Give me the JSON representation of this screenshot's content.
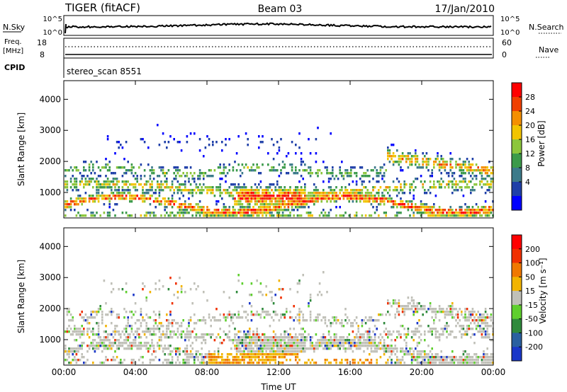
{
  "header": {
    "title": "TIGER (fitACF)",
    "beam": "Beam 03",
    "date": "17/Jan/2010"
  },
  "strip": {
    "nsky_label": "N.Sky",
    "nsearch_label": "N.Search",
    "nsky_ticks": [
      "10^5",
      "10^0"
    ],
    "freq_label_top": "Freq.",
    "freq_label_bottom": "[MHz]",
    "freq_ticks": [
      "18",
      "8"
    ],
    "nave_label": "Nave",
    "nave_ticks": [
      "60",
      "0"
    ],
    "cpid_label": "CPID",
    "cpid_value": "stereo_scan 8551"
  },
  "chart_data": [
    {
      "type": "heatmap",
      "name_hint": "power",
      "ylabel": "Slant Range [km]",
      "xlabel": "",
      "x_ticks": [
        "00:00",
        "04:00",
        "08:00",
        "12:00",
        "16:00",
        "20:00",
        "00:00"
      ],
      "x_range_hours": [
        0,
        24
      ],
      "y_ticks": [
        1000,
        2000,
        3000,
        4000
      ],
      "ylim": [
        180,
        4600
      ],
      "colorbar_label": "Power [dB]",
      "colorbar_ticks": [
        4,
        8,
        12,
        16,
        20,
        24,
        28
      ],
      "colorbar_colors": [
        "#0000ff",
        "#1f3fa8",
        "#3c7a8a",
        "#3b9a4a",
        "#8cc63c",
        "#f2c400",
        "#f48f00",
        "#f04000",
        "#ff0000"
      ]
    },
    {
      "type": "heatmap",
      "name_hint": "velocity",
      "ylabel": "Slant Range [km]",
      "xlabel": "Time UT",
      "x_ticks": [
        "00:00",
        "04:00",
        "08:00",
        "12:00",
        "16:00",
        "20:00",
        "00:00"
      ],
      "x_range_hours": [
        0,
        24
      ],
      "y_ticks": [
        1000,
        2000,
        3000,
        4000
      ],
      "ylim": [
        180,
        4600
      ],
      "colorbar_label": "Velocity [m s⁻¹]",
      "colorbar_ticks": [
        200,
        100,
        50,
        15,
        -15,
        -50,
        -100,
        -200
      ],
      "colorbar_colors": [
        "#1a37c8",
        "#2a60a0",
        "#2f8a3c",
        "#5fcf2e",
        "#c0c0b8",
        "#f2b400",
        "#f07800",
        "#f03000",
        "#ff0000"
      ]
    }
  ]
}
